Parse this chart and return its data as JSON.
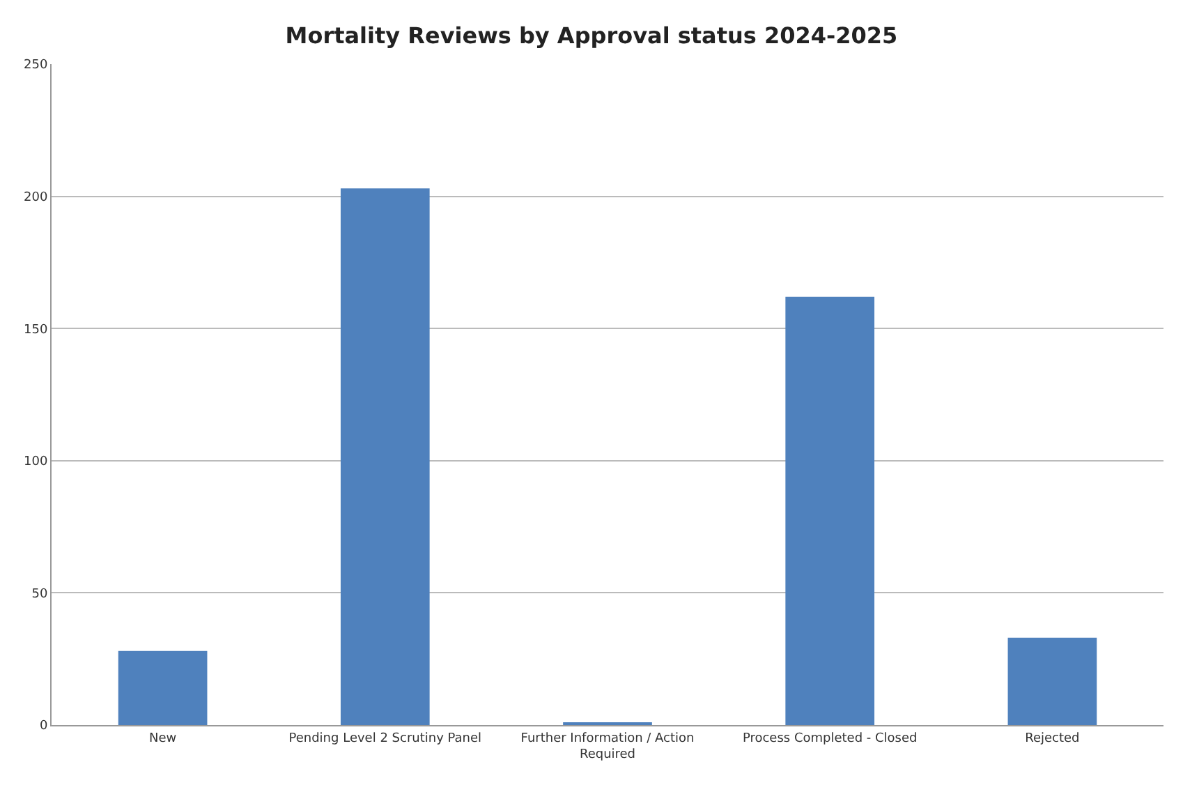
{
  "chart_data": {
    "type": "bar",
    "title": "Mortality Reviews by Approval status 2024-2025",
    "categories": [
      "New",
      "Pending Level 2 Scrutiny Panel",
      "Further Information / Action Required",
      "Process Completed - Closed",
      "Rejected"
    ],
    "values": [
      28,
      203,
      1,
      162,
      33
    ],
    "color": "#4f81bd",
    "ylim": [
      0,
      250
    ],
    "yticks": [
      0,
      50,
      100,
      150,
      200,
      250
    ],
    "grid": "y"
  }
}
